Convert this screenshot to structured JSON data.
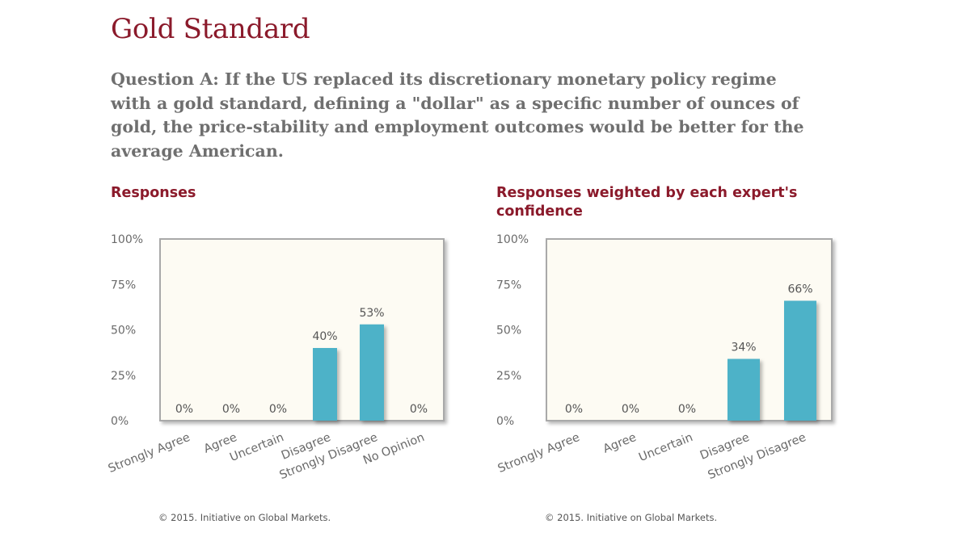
{
  "title": "Gold Standard",
  "question": "Question A: If the US replaced its discretionary monetary policy regime with a gold standard, defining a \"dollar\" as a specific number of ounces of gold, the price-stability and employment outcomes would be better for the average American.",
  "colors": {
    "title": "#8b1a2b",
    "bar": "#4db2c8",
    "plot_background": "#fdfbf3",
    "plot_border": "#a9a9a9",
    "text": "#6a6a6a"
  },
  "chart_data": [
    {
      "type": "bar",
      "title": "Responses",
      "categories": [
        "Strongly Agree",
        "Agree",
        "Uncertain",
        "Disagree",
        "Strongly Disagree",
        "No Opinion"
      ],
      "values": [
        0,
        0,
        0,
        40,
        53,
        0
      ],
      "data_labels": [
        "0%",
        "0%",
        "0%",
        "40%",
        "53%",
        "0%"
      ],
      "yticks": [
        "0%",
        "25%",
        "50%",
        "75%",
        "100%"
      ],
      "ylim": [
        0,
        100
      ],
      "grid": false,
      "legend": "none",
      "footer": "© 2015. Initiative on Global Markets."
    },
    {
      "type": "bar",
      "title": "Responses weighted by each expert's confidence",
      "categories": [
        "Strongly Agree",
        "Agree",
        "Uncertain",
        "Disagree",
        "Strongly Disagree"
      ],
      "values": [
        0,
        0,
        0,
        34,
        66
      ],
      "data_labels": [
        "0%",
        "0%",
        "0%",
        "34%",
        "66%"
      ],
      "yticks": [
        "0%",
        "25%",
        "50%",
        "75%",
        "100%"
      ],
      "ylim": [
        0,
        100
      ],
      "grid": false,
      "legend": "none",
      "footer": "© 2015. Initiative on Global Markets."
    }
  ]
}
